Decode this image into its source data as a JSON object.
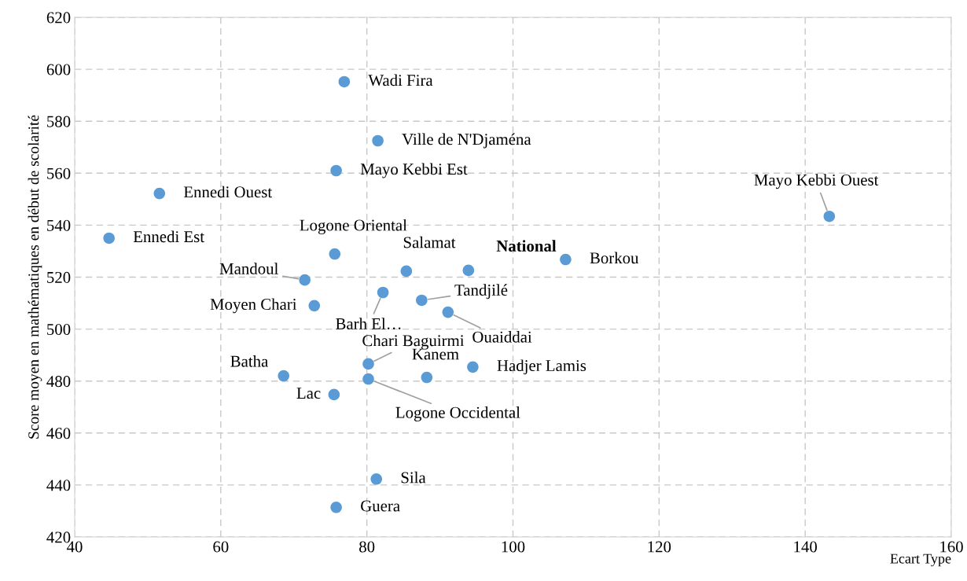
{
  "chart_data": {
    "type": "scatter",
    "ylabel": "Score moyen en mathématiques en début de scolarité",
    "xlabel": "Ecart Type",
    "xlim": [
      40,
      160
    ],
    "xticks": [
      40,
      60,
      80,
      100,
      120,
      140,
      160
    ],
    "ylim": [
      420,
      620
    ],
    "yticks": [
      420,
      440,
      460,
      480,
      500,
      520,
      540,
      560,
      580,
      600,
      620
    ],
    "grid": true,
    "marker": "circle",
    "series": [
      {
        "color": "#5b9bd5",
        "x": [
          76.9,
          81.5,
          75.8,
          51.6,
          143.3,
          44.7,
          75.6,
          85.4,
          93.9,
          107.2,
          71.5,
          82.2,
          87.5,
          72.8,
          91.1,
          80.2,
          94.5,
          88.2,
          68.6,
          80.2,
          75.5,
          81.3,
          75.8
        ],
        "values": [
          595.2,
          572.5,
          561,
          552.2,
          543.4,
          535,
          528.9,
          522.3,
          522.6,
          526.8,
          518.9,
          514.1,
          511.1,
          509,
          506.5,
          486.6,
          485.4,
          481.4,
          482,
          480.8,
          474.8,
          442.3,
          431.4
        ]
      }
    ],
    "annotations": [
      {
        "text": "Wadi Fira",
        "x": 76.9,
        "y": 595.2
      },
      {
        "text": "Ville de N'Djaména",
        "x": 81.5,
        "y": 572.5
      },
      {
        "text": "Mayo Kebbi Est",
        "x": 75.8,
        "y": 561
      },
      {
        "text": "Ennedi Ouest",
        "x": 51.6,
        "y": 552.2
      },
      {
        "text": "Mayo Kebbi Ouest",
        "x": 143.3,
        "y": 543.4
      },
      {
        "text": "Ennedi Est",
        "x": 44.7,
        "y": 535
      },
      {
        "text": "Logone Oriental",
        "x": 75.6,
        "y": 528.9
      },
      {
        "text": "Salamat",
        "x": 85.4,
        "y": 522.3
      },
      {
        "text": "National",
        "x": 93.9,
        "y": 522.6
      },
      {
        "text": "Borkou",
        "x": 107.2,
        "y": 526.8
      },
      {
        "text": "Mandoul",
        "x": 71.5,
        "y": 518.9
      },
      {
        "text": "Barh El…",
        "x": 82.2,
        "y": 514.1
      },
      {
        "text": "Tandjilé",
        "x": 87.5,
        "y": 511.1
      },
      {
        "text": "Moyen Chari",
        "x": 72.8,
        "y": 509
      },
      {
        "text": "Ouaiddai",
        "x": 91.1,
        "y": 506.5
      },
      {
        "text": "Chari Baguirmi",
        "x": 80.2,
        "y": 486.6
      },
      {
        "text": "Hadjer Lamis",
        "x": 94.5,
        "y": 485.4
      },
      {
        "text": "Kanem",
        "x": 88.2,
        "y": 481.4
      },
      {
        "text": "Batha",
        "x": 68.6,
        "y": 482
      },
      {
        "text": "Logone Occidental",
        "x": 80.2,
        "y": 480.8
      },
      {
        "text": "Lac",
        "x": 75.5,
        "y": 474.8
      },
      {
        "text": "Sila",
        "x": 81.3,
        "y": 442.3
      },
      {
        "text": "Guera",
        "x": 75.8,
        "y": 431.4
      }
    ]
  }
}
